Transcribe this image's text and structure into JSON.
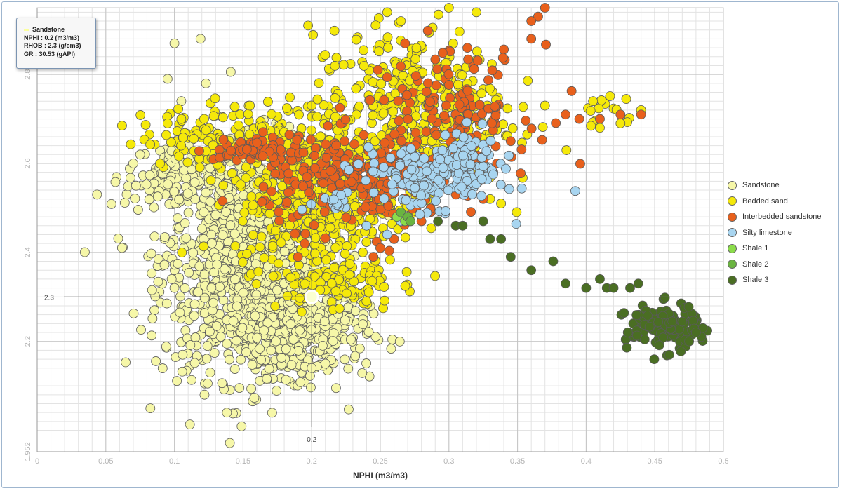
{
  "chart_data": {
    "type": "scatter",
    "title": "",
    "xlabel": "NPHI (m3/m3)",
    "ylabel": "",
    "xlim": [
      0,
      0.5
    ],
    "ylim": [
      1.952,
      2.95
    ],
    "x_ticks": [
      0,
      0.05,
      0.1,
      0.15,
      0.2,
      0.25,
      0.3,
      0.35,
      0.4,
      0.45,
      0.5
    ],
    "x_tick_labels": [
      "0",
      "0.05",
      "0.1",
      "0.15",
      "0.2",
      "0.25",
      "0.3",
      "0.35",
      "0.4",
      "0.45",
      "0.5"
    ],
    "y_ticks": [
      1.952,
      2.2,
      2.4,
      2.6,
      2.8
    ],
    "y_tick_labels": [
      "1.952",
      "2.2",
      "2.4",
      "2.6",
      "2.8"
    ],
    "grid": true,
    "legend_position": "right",
    "crosshair": {
      "x": 0.2,
      "y": 2.3,
      "x_label": "0.2",
      "y_label": "2.3"
    },
    "series": [
      {
        "name": "Sandstone",
        "color": "#f6f7a8",
        "clusters": [
          {
            "cx": 0.155,
            "cy": 2.38,
            "sx": 0.032,
            "sy": 0.13,
            "n": 1100
          },
          {
            "cx": 0.19,
            "cy": 2.22,
            "sx": 0.025,
            "sy": 0.05,
            "n": 350
          },
          {
            "cx": 0.1,
            "cy": 2.57,
            "sx": 0.018,
            "sy": 0.04,
            "n": 120
          }
        ],
        "points": [
          [
            0.1,
            2.87
          ],
          [
            0.119,
            2.88
          ],
          [
            0.095,
            2.79
          ],
          [
            0.105,
            2.74
          ],
          [
            0.123,
            2.78
          ],
          [
            0.2,
            2.3
          ],
          [
            0.106,
            2.17
          ],
          [
            0.126,
            2.13
          ],
          [
            0.075,
            2.62
          ],
          [
            0.07,
            2.6
          ],
          [
            0.072,
            2.55
          ],
          [
            0.098,
            2.34
          ],
          [
            0.1,
            2.32
          ],
          [
            0.2,
            2.14
          ],
          [
            0.21,
            2.15
          ]
        ]
      },
      {
        "name": "Bedded sand",
        "color": "#f5e90a",
        "clusters": [
          {
            "cx": 0.205,
            "cy": 2.52,
            "sx": 0.03,
            "sy": 0.08,
            "n": 450
          },
          {
            "cx": 0.27,
            "cy": 2.72,
            "sx": 0.035,
            "sy": 0.09,
            "n": 380
          },
          {
            "cx": 0.145,
            "cy": 2.66,
            "sx": 0.035,
            "sy": 0.035,
            "n": 160
          },
          {
            "cx": 0.22,
            "cy": 2.33,
            "sx": 0.02,
            "sy": 0.03,
            "n": 90
          },
          {
            "cx": 0.42,
            "cy": 2.71,
            "sx": 0.012,
            "sy": 0.02,
            "n": 14
          }
        ],
        "points": [
          [
            0.265,
            2.92
          ],
          [
            0.255,
            2.94
          ],
          [
            0.32,
            2.94
          ],
          [
            0.3,
            2.95
          ],
          [
            0.155,
            2.73
          ],
          [
            0.18,
            2.67
          ],
          [
            0.105,
            2.7
          ],
          [
            0.095,
            2.69
          ],
          [
            0.338,
            2.51
          ],
          [
            0.33,
            2.52
          ],
          [
            0.37,
            2.73
          ],
          [
            0.405,
            2.74
          ],
          [
            0.41,
            2.68
          ],
          [
            0.44,
            2.72
          ],
          [
            0.425,
            2.69
          ]
        ]
      },
      {
        "name": "Interbedded sandstone",
        "color": "#e8601c",
        "clusters": [
          {
            "cx": 0.235,
            "cy": 2.56,
            "sx": 0.035,
            "sy": 0.05,
            "n": 260
          },
          {
            "cx": 0.3,
            "cy": 2.72,
            "sx": 0.03,
            "sy": 0.07,
            "n": 140
          },
          {
            "cx": 0.16,
            "cy": 2.63,
            "sx": 0.015,
            "sy": 0.012,
            "n": 60
          }
        ],
        "points": [
          [
            0.37,
            2.95
          ],
          [
            0.365,
            2.93
          ],
          [
            0.36,
            2.92
          ],
          [
            0.36,
            2.88
          ],
          [
            0.385,
            2.71
          ],
          [
            0.395,
            2.7
          ],
          [
            0.41,
            2.7
          ],
          [
            0.425,
            2.71
          ],
          [
            0.44,
            2.71
          ],
          [
            0.325,
            2.52
          ],
          [
            0.305,
            2.53
          ],
          [
            0.28,
            2.47
          ],
          [
            0.26,
            2.43
          ],
          [
            0.25,
            2.41
          ],
          [
            0.245,
            2.39
          ],
          [
            0.19,
            2.39
          ],
          [
            0.195,
            2.42
          ],
          [
            0.335,
            2.6
          ],
          [
            0.345,
            2.65
          ]
        ]
      },
      {
        "name": "Silty limestone",
        "color": "#a8d5f0",
        "clusters": [
          {
            "cx": 0.285,
            "cy": 2.57,
            "sx": 0.025,
            "sy": 0.035,
            "n": 170
          },
          {
            "cx": 0.32,
            "cy": 2.6,
            "sx": 0.01,
            "sy": 0.04,
            "n": 50
          },
          {
            "cx": 0.215,
            "cy": 2.52,
            "sx": 0.008,
            "sy": 0.02,
            "n": 18
          }
        ],
        "points": [
          [
            0.255,
            2.44
          ],
          [
            0.24,
            2.46
          ],
          [
            0.265,
            2.47
          ]
        ]
      },
      {
        "name": "Shale 1",
        "color": "#8bdc4a",
        "clusters": [],
        "points": [
          [
            0.262,
            2.48
          ],
          [
            0.268,
            2.47
          ]
        ]
      },
      {
        "name": "Shale 2",
        "color": "#6ab440",
        "clusters": [],
        "points": [
          [
            0.265,
            2.49
          ],
          [
            0.27,
            2.48
          ],
          [
            0.272,
            2.47
          ]
        ]
      },
      {
        "name": "Shale 3",
        "color": "#4a6e23",
        "clusters": [
          {
            "cx": 0.455,
            "cy": 2.23,
            "sx": 0.013,
            "sy": 0.025,
            "n": 140
          }
        ],
        "points": [
          [
            0.292,
            2.47
          ],
          [
            0.305,
            2.46
          ],
          [
            0.31,
            2.46
          ],
          [
            0.325,
            2.47
          ],
          [
            0.33,
            2.43
          ],
          [
            0.338,
            2.43
          ],
          [
            0.345,
            2.39
          ],
          [
            0.36,
            2.36
          ],
          [
            0.376,
            2.38
          ],
          [
            0.385,
            2.33
          ],
          [
            0.4,
            2.32
          ],
          [
            0.41,
            2.34
          ],
          [
            0.415,
            2.32
          ],
          [
            0.42,
            2.32
          ],
          [
            0.432,
            2.32
          ],
          [
            0.438,
            2.33
          ],
          [
            0.485,
            2.23
          ],
          [
            0.484,
            2.21
          ],
          [
            0.475,
            2.2
          ],
          [
            0.48,
            2.22
          ]
        ]
      }
    ]
  },
  "tooltip": {
    "title": "Sandstone",
    "line1": "NPHI : 0.2 (m3/m3)",
    "line2": "RHOB : 2.3 (g/cm3)",
    "line3": "GR : 30.53 (gAPI)"
  }
}
